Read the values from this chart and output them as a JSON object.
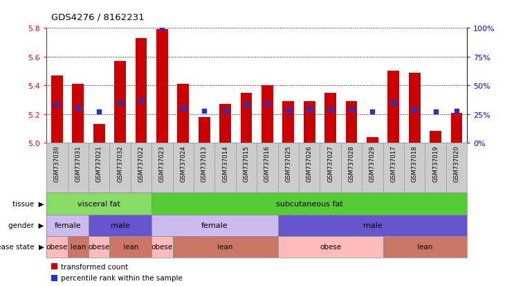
{
  "title": "GDS4276 / 8162231",
  "samples": [
    "GSM737030",
    "GSM737031",
    "GSM737021",
    "GSM737032",
    "GSM737022",
    "GSM737023",
    "GSM737024",
    "GSM737013",
    "GSM737014",
    "GSM737015",
    "GSM737016",
    "GSM737025",
    "GSM737026",
    "GSM737027",
    "GSM737028",
    "GSM737029",
    "GSM737017",
    "GSM737018",
    "GSM737019",
    "GSM737020"
  ],
  "bar_values": [
    5.47,
    5.41,
    5.13,
    5.57,
    5.73,
    5.79,
    5.41,
    5.18,
    5.27,
    5.35,
    5.4,
    5.29,
    5.29,
    5.35,
    5.29,
    5.04,
    5.5,
    5.49,
    5.08,
    5.21
  ],
  "dot_pct": [
    33,
    30,
    27,
    35,
    37,
    100,
    30,
    28,
    28,
    33,
    34,
    28,
    29,
    29,
    29,
    27,
    35,
    29,
    27,
    28
  ],
  "ylim": [
    5.0,
    5.8
  ],
  "yticks_left": [
    5.0,
    5.2,
    5.4,
    5.6,
    5.8
  ],
  "yticks_right": [
    0,
    25,
    50,
    75,
    100
  ],
  "ytick_right_labels": [
    "0%",
    "25%",
    "50%",
    "75%",
    "100%"
  ],
  "bar_color": "#CC0000",
  "dot_color": "#2233CC",
  "xtick_bg": "#CCCCCC",
  "tissue_groups": [
    {
      "label": "visceral fat",
      "start": 0,
      "end": 5,
      "color": "#88DD66"
    },
    {
      "label": "subcutaneous fat",
      "start": 5,
      "end": 20,
      "color": "#55CC33"
    }
  ],
  "gender_groups": [
    {
      "label": "female",
      "start": 0,
      "end": 2,
      "color": "#CCBBEE"
    },
    {
      "label": "male",
      "start": 2,
      "end": 5,
      "color": "#6655CC"
    },
    {
      "label": "female",
      "start": 5,
      "end": 11,
      "color": "#CCBBEE"
    },
    {
      "label": "male",
      "start": 11,
      "end": 20,
      "color": "#6655CC"
    }
  ],
  "disease_groups": [
    {
      "label": "obese",
      "start": 0,
      "end": 1,
      "color": "#FFBBBB"
    },
    {
      "label": "lean",
      "start": 1,
      "end": 2,
      "color": "#CC7766"
    },
    {
      "label": "obese",
      "start": 2,
      "end": 3,
      "color": "#FFBBBB"
    },
    {
      "label": "lean",
      "start": 3,
      "end": 5,
      "color": "#CC7766"
    },
    {
      "label": "obese",
      "start": 5,
      "end": 6,
      "color": "#FFBBBB"
    },
    {
      "label": "lean",
      "start": 6,
      "end": 11,
      "color": "#CC7766"
    },
    {
      "label": "obese",
      "start": 11,
      "end": 16,
      "color": "#FFBBBB"
    },
    {
      "label": "lean",
      "start": 16,
      "end": 20,
      "color": "#CC7766"
    }
  ],
  "row_labels": [
    "tissue",
    "gender",
    "disease state"
  ],
  "legend_labels": [
    "transformed count",
    "percentile rank within the sample"
  ],
  "legend_colors": [
    "#CC0000",
    "#2233CC"
  ]
}
